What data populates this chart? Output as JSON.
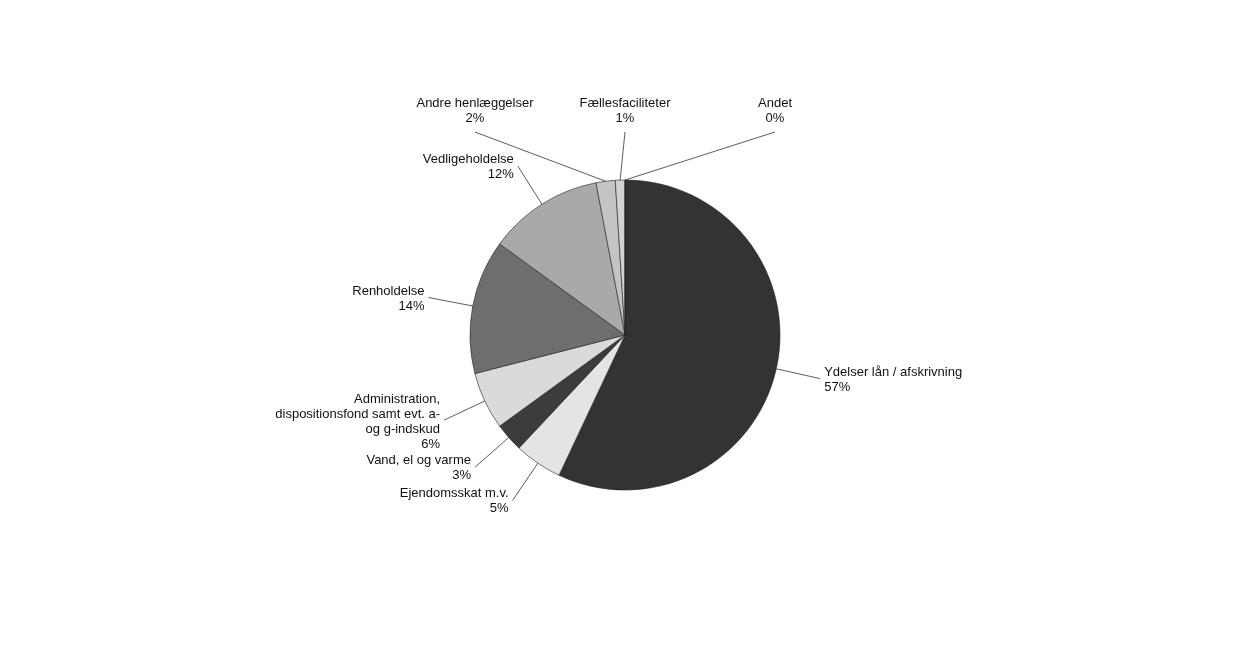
{
  "chart_data": {
    "type": "pie",
    "categories": [
      "Ydelser lån / afskrivning",
      "Ejendomsskat m.v.",
      "Vand, el og varme",
      "Administration, dispositionsfond samt evt. a- og g-indskud",
      "Renholdelse",
      "Vedligeholdelse",
      "Andre henlæggelser",
      "Fællesfaciliteter",
      "Andet"
    ],
    "values": [
      57,
      5,
      3,
      6,
      14,
      12,
      2,
      1,
      0
    ],
    "value_labels": [
      "57%",
      "5%",
      "3%",
      "6%",
      "14%",
      "12%",
      "2%",
      "1%",
      "0%"
    ],
    "colors": [
      "#333333",
      "#e4e4e4",
      "#3c3c3c",
      "#dadada",
      "#6e6e6e",
      "#a9a9a9",
      "#c4c4c4",
      "#d2d2d2",
      "#ffffff"
    ],
    "legend": false
  }
}
